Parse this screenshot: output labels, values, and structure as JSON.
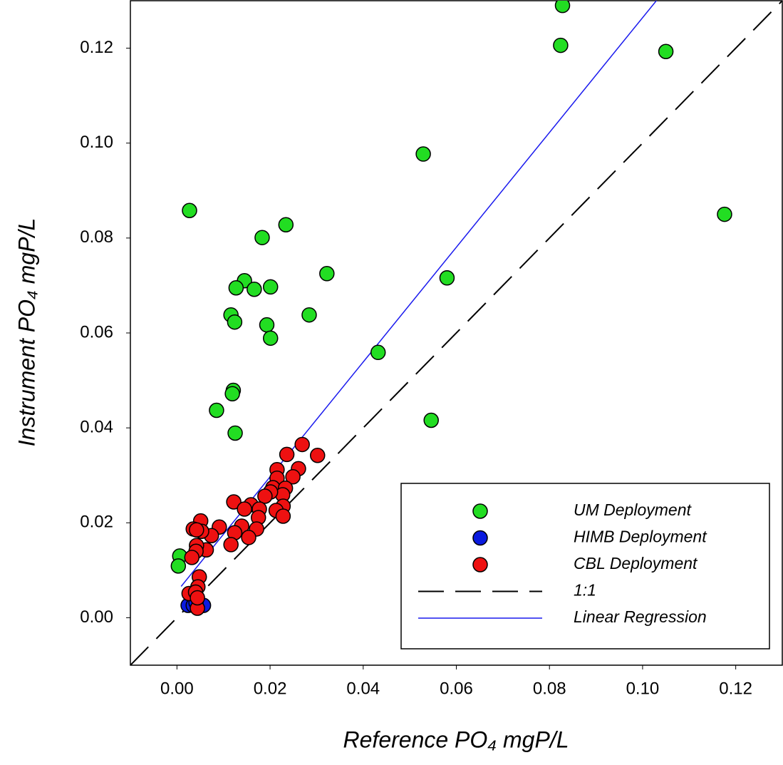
{
  "chart_data": {
    "type": "scatter",
    "x_label": "Reference PO₄ mgP/L",
    "y_label": "Instrument PO₄ mgP/L",
    "xlim": [
      -0.01,
      0.13
    ],
    "ylim": [
      -0.01,
      0.13
    ],
    "xticks": [
      {
        "value": 0,
        "label": "0.00"
      },
      {
        "value": 0.02,
        "label": "0.02"
      },
      {
        "value": 0.04,
        "label": "0.04"
      },
      {
        "value": 0.06,
        "label": "0.06"
      },
      {
        "value": 0.08,
        "label": "0.08"
      },
      {
        "value": 0.1,
        "label": "0.10"
      },
      {
        "value": 0.12,
        "label": "0.12"
      }
    ],
    "yticks": [
      {
        "value": 0,
        "label": "0.00"
      },
      {
        "value": 0.02,
        "label": "0.02"
      },
      {
        "value": 0.04,
        "label": "0.04"
      },
      {
        "value": 0.06,
        "label": "0.06"
      },
      {
        "value": 0.08,
        "label": "0.08"
      },
      {
        "value": 0.1,
        "label": "0.10"
      },
      {
        "value": 0.12,
        "label": "0.12"
      }
    ],
    "grid": false,
    "legend": "lower right",
    "series": [
      {
        "name": "UM Deployment",
        "type": "scatter",
        "color": "#22dd22",
        "x": [
          0.0828,
          0.0824,
          0.105,
          0.1176,
          0.0529,
          0.0027,
          0.0234,
          0.0183,
          0.0322,
          0.0145,
          0.0127,
          0.0166,
          0.0201,
          0.058,
          0.0116,
          0.0124,
          0.0284,
          0.0193,
          0.0201,
          0.0432,
          0.0121,
          0.0119,
          0.0085,
          0.0125,
          0.0546,
          0.0006,
          0.0003
        ],
        "values": [
          0.129,
          0.1206,
          0.1193,
          0.085,
          0.0977,
          0.0858,
          0.0828,
          0.0801,
          0.0725,
          0.071,
          0.0695,
          0.0692,
          0.0697,
          0.0716,
          0.0638,
          0.0623,
          0.0638,
          0.0617,
          0.0589,
          0.0559,
          0.0479,
          0.0472,
          0.0437,
          0.0389,
          0.0416,
          0.013,
          0.0109
        ]
      },
      {
        "name": "HIMB Deployment",
        "type": "scatter",
        "color": "#0a1adf",
        "x": [
          0.0024,
          0.0035,
          0.0047,
          0.0057,
          0.0041
        ],
        "values": [
          0.0026,
          0.0026,
          0.0026,
          0.0026,
          0.0032
        ]
      },
      {
        "name": "CBL Deployment",
        "type": "scatter",
        "color": "#ee1111",
        "x": [
          0.0302,
          0.0269,
          0.0236,
          0.0261,
          0.0249,
          0.0215,
          0.0215,
          0.0206,
          0.0233,
          0.0227,
          0.0201,
          0.0189,
          0.0228,
          0.0213,
          0.0228,
          0.0122,
          0.0159,
          0.0145,
          0.0177,
          0.0175,
          0.0171,
          0.0139,
          0.0124,
          0.0154,
          0.0116,
          0.0091,
          0.0074,
          0.0051,
          0.0035,
          0.0053,
          0.0042,
          0.0063,
          0.0042,
          0.0041,
          0.0032,
          0.0048,
          0.0045,
          0.0026,
          0.004,
          0.0044,
          0.0044
        ],
        "values": [
          0.0342,
          0.0365,
          0.0344,
          0.0314,
          0.0297,
          0.0312,
          0.0294,
          0.0274,
          0.0273,
          0.0259,
          0.0265,
          0.0256,
          0.0235,
          0.0226,
          0.0214,
          0.0244,
          0.0238,
          0.0229,
          0.0229,
          0.0211,
          0.0187,
          0.0193,
          0.0179,
          0.0169,
          0.0154,
          0.0191,
          0.0173,
          0.0204,
          0.0187,
          0.0182,
          0.0185,
          0.0143,
          0.0152,
          0.014,
          0.0127,
          0.0086,
          0.0065,
          0.0051,
          0.0054,
          0.002,
          0.0042
        ]
      },
      {
        "name": "1:1",
        "type": "line",
        "style": "dashed",
        "color": "#000000",
        "x": [
          -0.01,
          0.13
        ],
        "values": [
          -0.01,
          0.13
        ]
      },
      {
        "name": "Linear Regression",
        "type": "line",
        "style": "solid",
        "color": "#1a1aee",
        "x": [
          0.0009,
          0.1037
        ],
        "values": [
          0.0066,
          0.1309
        ]
      }
    ]
  }
}
